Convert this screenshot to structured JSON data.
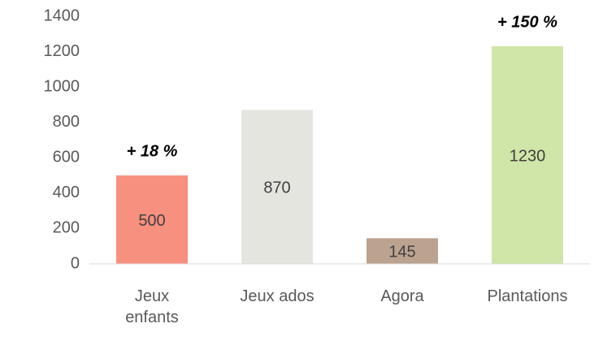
{
  "chart_data": {
    "type": "bar",
    "categories": [
      "Jeux enfants",
      "Jeux ados",
      "Agora",
      "Plantations"
    ],
    "values": [
      500,
      870,
      145,
      1230
    ],
    "colors": [
      "#f8907f",
      "#e5e5e0",
      "#bba38f",
      "#cfe6a8"
    ],
    "ylim": [
      0,
      1400
    ],
    "yticks": [
      0,
      200,
      400,
      600,
      800,
      1000,
      1200,
      1400
    ],
    "grid": false,
    "annotations": [
      {
        "text": "+ 18 %",
        "category": "Jeux enfants"
      },
      {
        "text": "+ 150 %",
        "category": "Plantations"
      }
    ]
  }
}
